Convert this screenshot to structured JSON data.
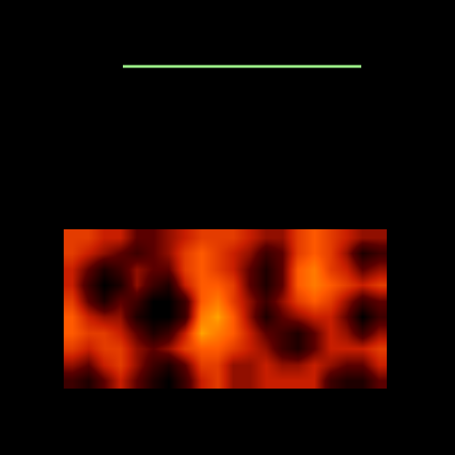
{
  "chart_data": {
    "type": "heatmap",
    "xlim": [
      0,
      500
    ],
    "ylim": [
      500,
      0
    ],
    "tick_labels": false,
    "grid": false,
    "zlim": [
      0,
      10
    ],
    "x": [
      78.9,
      96.6,
      114.4,
      132.1,
      149.9,
      167.6,
      185.4,
      203.1,
      220.9,
      238.6,
      256.4,
      274.1,
      291.9,
      309.6,
      327.4,
      345.1,
      362.9,
      380.6,
      398.4,
      416.1
    ],
    "y": [
      260.75,
      278.25,
      295.75,
      313.25,
      330.75,
      348.25,
      365.75,
      383.25,
      400.75,
      418.25
    ],
    "z": [
      [
        6,
        6,
        5,
        5,
        3,
        3,
        4,
        5,
        6,
        6,
        6,
        5,
        4,
        4,
        6,
        7,
        6,
        5,
        4,
        4
      ],
      [
        6,
        5,
        4,
        3,
        2,
        3,
        4,
        6,
        7,
        6,
        5,
        4,
        2,
        3,
        6,
        7,
        6,
        4,
        1,
        2
      ],
      [
        5,
        3,
        1,
        2,
        4,
        3,
        3,
        6,
        7,
        6,
        5,
        3,
        1,
        3,
        7,
        8,
        6,
        5,
        3,
        4
      ],
      [
        5,
        2,
        0,
        1,
        4,
        2,
        1,
        5,
        7,
        7,
        6,
        3,
        1,
        3,
        7,
        8,
        7,
        6,
        5,
        6
      ],
      [
        6,
        3,
        1,
        3,
        2,
        0,
        0,
        2,
        7,
        8,
        6,
        4,
        2,
        4,
        6,
        7,
        6,
        4,
        2,
        3
      ],
      [
        7,
        5,
        4,
        4,
        1,
        0,
        0,
        2,
        8,
        9,
        7,
        4,
        1,
        3,
        4,
        5,
        5,
        3,
        0,
        2
      ],
      [
        7,
        6,
        6,
        5,
        3,
        1,
        2,
        5,
        9,
        8,
        7,
        5,
        3,
        2,
        1,
        3,
        5,
        4,
        2,
        4
      ],
      [
        6,
        5,
        6,
        6,
        4,
        3,
        4,
        6,
        7,
        7,
        6,
        5,
        4,
        2,
        1,
        3,
        5,
        5,
        5,
        6
      ],
      [
        4,
        3,
        5,
        6,
        4,
        2,
        1,
        3,
        6,
        6,
        4,
        4,
        5,
        4,
        4,
        5,
        4,
        3,
        3,
        5
      ],
      [
        2,
        1,
        3,
        5,
        3,
        1,
        0,
        2,
        5,
        6,
        4,
        4,
        5,
        5,
        5,
        5,
        2,
        1,
        1,
        3
      ]
    ],
    "lines": [
      {
        "x": [
          135,
          397
        ],
        "y": [
          73,
          73
        ],
        "color": "#9ef58a"
      }
    ]
  }
}
